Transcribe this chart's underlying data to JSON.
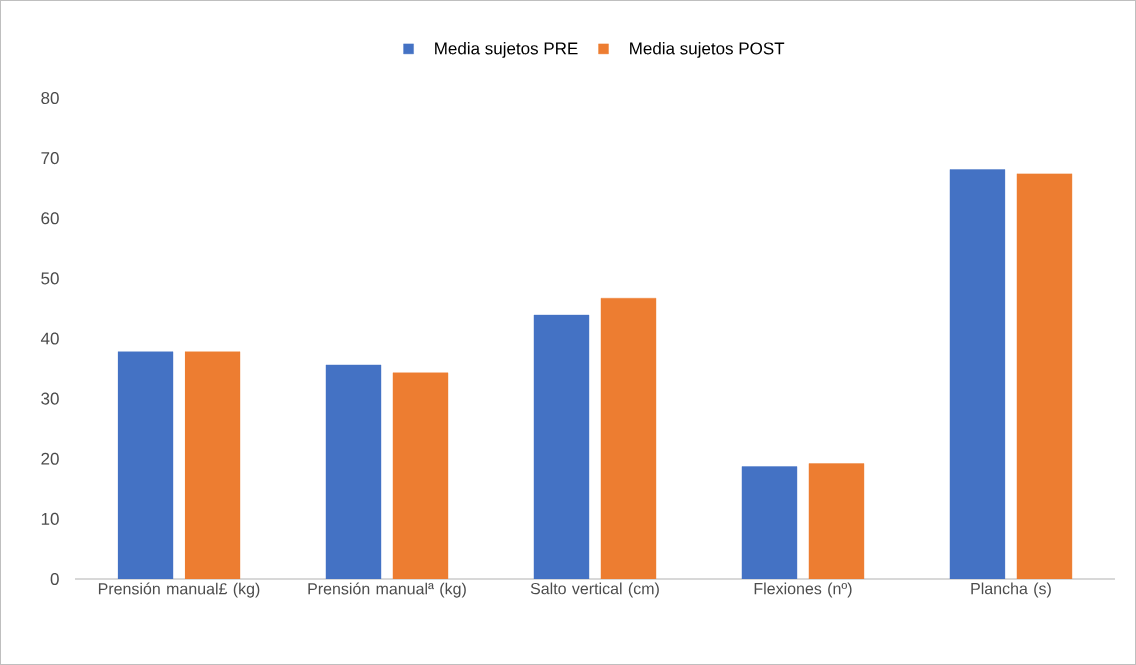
{
  "chart_data": {
    "type": "bar",
    "categories": [
      "Prensión manual£ (kg)",
      "Prensión manualª (kg)",
      "Salto vertical (cm)",
      "Flexiones (nº)",
      "Plancha (s)"
    ],
    "series": [
      {
        "name": "Media sujetos PRE",
        "color": "#4472c4",
        "values": [
          37.8,
          35.6,
          43.9,
          18.7,
          68.1
        ]
      },
      {
        "name": "Media sujetos POST",
        "color": "#ed7d31",
        "values": [
          37.8,
          34.3,
          46.7,
          19.2,
          67.4
        ]
      }
    ],
    "ylim": [
      0,
      80
    ],
    "yticks": [
      0,
      10,
      20,
      30,
      40,
      50,
      60,
      70,
      80
    ],
    "legend": "top"
  }
}
